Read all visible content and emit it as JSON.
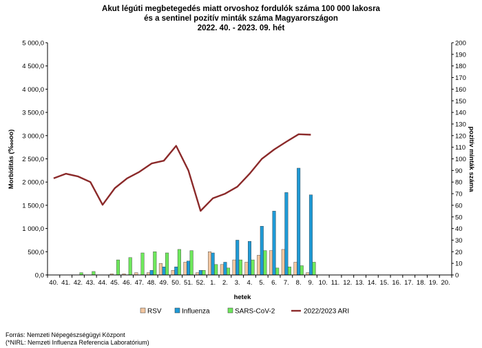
{
  "chart_data": {
    "type": "bar",
    "title_lines": [
      "Akut légúti megbetegedés miatt orvoshoz fordulók száma 100 000 lakosra",
      "és a sentinel pozitív minták száma Magyarországon",
      "2022. 40. - 2023. 09. hét"
    ],
    "xlabel": "hetek",
    "ylabel": "Morbiditás (‱oo)",
    "y2label": "pozitív minták száma",
    "categories": [
      "40.",
      "41.",
      "42.",
      "43.",
      "44.",
      "45.",
      "46.",
      "47.",
      "48.",
      "49.",
      "50.",
      "51.",
      "52.",
      "1.",
      "2.",
      "3.",
      "4.",
      "5.",
      "6.",
      "7.",
      "8.",
      "9.",
      "10.",
      "11.",
      "12.",
      "13.",
      "14.",
      "15.",
      "16.",
      "17.",
      "18.",
      "19.",
      "20."
    ],
    "ylim": [
      0,
      5000
    ],
    "y2lim": [
      0,
      200
    ],
    "ytick_labels": [
      "0,0",
      "500,0",
      "1 000,0",
      "1 500,0",
      "2 000,0",
      "2 500,0",
      "3 000,0",
      "3 500,0",
      "4 000,0",
      "4 500,0",
      "5 000,0"
    ],
    "y2tick_labels": [
      "0",
      "10",
      "20",
      "30",
      "40",
      "50",
      "60",
      "70",
      "80",
      "90",
      "100",
      "110",
      "120",
      "130",
      "140",
      "150",
      "160",
      "170",
      "180",
      "190",
      "200"
    ],
    "series": [
      {
        "name": "RSV",
        "axis": "right",
        "color": "#f2c6a0",
        "values": [
          0,
          0,
          0,
          0,
          0,
          1,
          1,
          2,
          2,
          10,
          4,
          11,
          2,
          20,
          9,
          13,
          11,
          17,
          21,
          22,
          11,
          2,
          null,
          null,
          null,
          null,
          null,
          null,
          null,
          null,
          null,
          null,
          null
        ]
      },
      {
        "name": "Influenza",
        "axis": "right",
        "color": "#1f9ad6",
        "values": [
          0,
          0,
          0,
          0,
          0,
          0,
          0,
          0,
          4,
          7,
          7,
          12,
          4,
          19,
          11,
          30,
          29,
          42,
          55,
          71,
          92,
          69,
          null,
          null,
          null,
          null,
          null,
          null,
          null,
          null,
          null,
          null,
          null
        ]
      },
      {
        "name": "SARS-CoV-2",
        "axis": "right",
        "color": "#6ee85c",
        "values": [
          0,
          0,
          2,
          3,
          0,
          13,
          15,
          19,
          20,
          19,
          22,
          21,
          4,
          9,
          6,
          13,
          13,
          21,
          6,
          7,
          8,
          11,
          null,
          null,
          null,
          null,
          null,
          null,
          null,
          null,
          null,
          null,
          null
        ]
      },
      {
        "name": "2022/2023 ARI",
        "axis": "left",
        "type": "line",
        "color": "#8b2a2a",
        "values": [
          2080,
          2180,
          2120,
          2000,
          1510,
          1870,
          2080,
          2220,
          2400,
          2460,
          2780,
          2250,
          1380,
          1650,
          1750,
          1900,
          2180,
          2500,
          2700,
          2870,
          3030,
          3020,
          null,
          null,
          null,
          null,
          null,
          null,
          null,
          null,
          null,
          null,
          null
        ]
      }
    ],
    "legend_position": "bottom",
    "grid": false
  },
  "source_lines": [
    "Forrás: Nemzeti Népegészségügyi Központ",
    "(*NIRL: Nemzeti Influenza Referencia Laboratórium)"
  ]
}
